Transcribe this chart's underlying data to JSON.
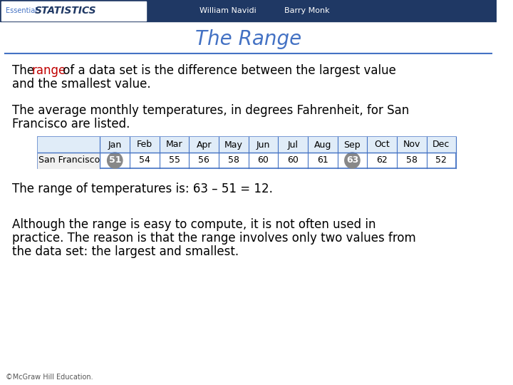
{
  "title": "The Range",
  "title_color": "#4472C4",
  "header_bg": "#1F3864",
  "header_text2": "William Navidi",
  "header_text3": "Barry Monk",
  "highlight_color": "#C00000",
  "months": [
    "Jan",
    "Feb",
    "Mar",
    "Apr",
    "May",
    "Jun",
    "Jul",
    "Aug",
    "Sep",
    "Oct",
    "Nov",
    "Dec"
  ],
  "row_label": "San Francisco",
  "values": [
    51,
    54,
    55,
    56,
    58,
    60,
    60,
    61,
    63,
    62,
    58,
    52
  ],
  "circled_indices": [
    0,
    8
  ],
  "circle_color": "#888888",
  "line3": "The range of temperatures is: 63 – 51 = 12.",
  "line4_1": "Although the range is easy to compute, it is not often used in",
  "line4_2": "practice. The reason is that the range involves only two values from",
  "line4_3": "the data set: the largest and smallest.",
  "footer": "©McGraw Hill Education.",
  "bg_color": "#FFFFFF",
  "text_color": "#000000",
  "table_border_color": "#4472C4",
  "separator_color": "#4472C4"
}
